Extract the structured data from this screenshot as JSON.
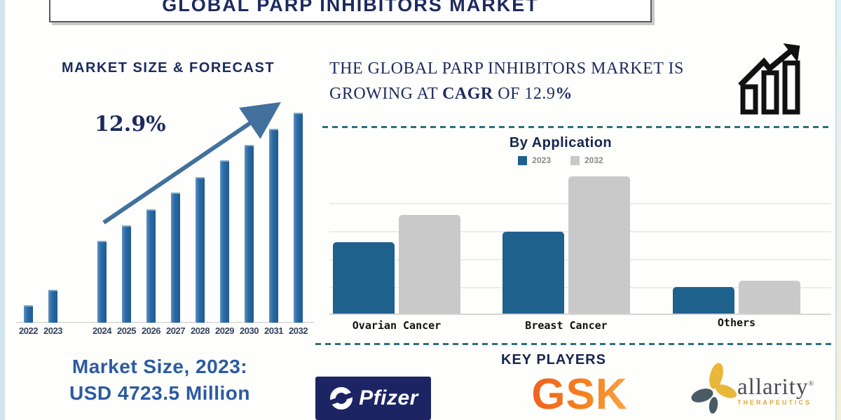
{
  "banner": {
    "title": "GLOBAL PARP INHIBITORS MARKET"
  },
  "colors": {
    "navy": "#1c2a5e",
    "forecast_bar": "#2c6ba3",
    "arrow": "#41719c",
    "series_2023": "#1f618d",
    "series_2032": "#c9c9c9",
    "divider_teal": "#2f6f7d",
    "market_size_blue": "#2b5aa2",
    "gsk_orange": "#f58220",
    "pfizer_navy": "#1d2464",
    "allarity_gold": "#e9b73a",
    "allarity_slate": "#4a5b66"
  },
  "left": {
    "section_title": "MARKET SIZE & FORECAST",
    "cagr_annotation": "12.9%",
    "market_size_line1": "Market Size, 2023:",
    "market_size_line2": "USD 4723.5 Million"
  },
  "right": {
    "headline_line1": "THE GLOBAL PARP INHIBITORS MARKET IS",
    "headline_line2_prefix": "GROWING AT ",
    "headline_cagr_word": "CAGR",
    "headline_line2_mid": " OF 12.9",
    "headline_percent": "%"
  },
  "chart_data": [
    {
      "name": "market_size_forecast",
      "type": "bar",
      "title": "MARKET SIZE & FORECAST",
      "categories": [
        "2022",
        "2023",
        "2024",
        "2025",
        "2026",
        "2027",
        "2028",
        "2029",
        "2030",
        "2031",
        "2032"
      ],
      "values": [
        25,
        47,
        117,
        139,
        162,
        186,
        208,
        232,
        254,
        277,
        300
      ],
      "units": "relative bar height (no axis values shown)",
      "gap_before": [
        "2024"
      ],
      "annotation": "12.9%",
      "bar_color": "#2c6ba3",
      "grid": false,
      "known_point": "2023 = USD 4723.5 Million"
    },
    {
      "name": "by_application",
      "type": "bar",
      "title": "By Application",
      "categories": [
        "Ovarian Cancer",
        "Breast Cancer",
        "Others"
      ],
      "series": [
        {
          "name": "2023",
          "color": "#1f618d",
          "values": [
            102,
            117,
            38
          ]
        },
        {
          "name": "2032",
          "color": "#c9c9c9",
          "values": [
            141,
            196,
            47
          ]
        }
      ],
      "units": "relative bar height (no axis values shown)",
      "legend_position": "top",
      "grid": true
    }
  ],
  "key_players": {
    "title": "KEY PLAYERS",
    "pfizer_label": "Pfizer",
    "gsk_label": "GSK",
    "allarity_label": "allarity",
    "allarity_reg": "®",
    "allarity_sub": "THERAPEUTICS"
  }
}
